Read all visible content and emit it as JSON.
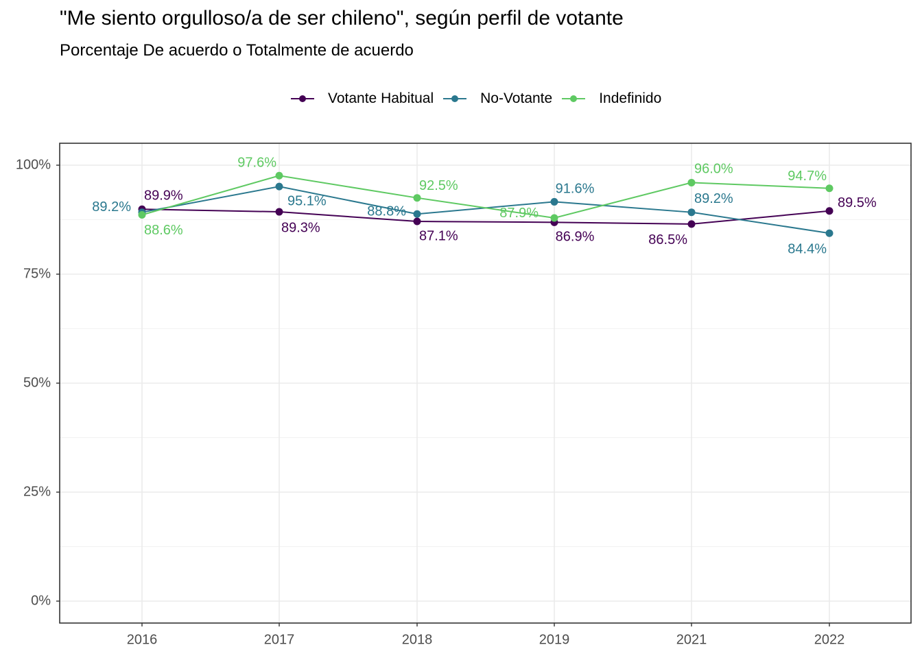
{
  "chart_data": {
    "type": "line",
    "title": "\"Me siento orgulloso/a de ser chileno\", según perfil de votante",
    "subtitle": "Porcentaje De acuerdo o Totalmente de acuerdo",
    "categories": [
      "2016",
      "2017",
      "2018",
      "2019",
      "2021",
      "2022"
    ],
    "ylim": [
      0,
      100
    ],
    "yticks": [
      0,
      25,
      50,
      75,
      100
    ],
    "ytick_labels": [
      "0%",
      "25%",
      "50%",
      "75%",
      "100%"
    ],
    "grid": true,
    "legend_position": "top",
    "series": [
      {
        "name": "Votante Habitual",
        "color": "#440154",
        "values": [
          89.9,
          89.3,
          87.1,
          86.9,
          86.5,
          89.5
        ],
        "labels": [
          "89.9%",
          "89.3%",
          "87.1%",
          "86.9%",
          "86.5%",
          "89.5%"
        ]
      },
      {
        "name": "No-Votante",
        "color": "#2A788E",
        "values": [
          89.2,
          95.1,
          88.8,
          91.6,
          89.2,
          84.4
        ],
        "labels": [
          "89.2%",
          "95.1%",
          "88.8%",
          "91.6%",
          "89.2%",
          "84.4%"
        ]
      },
      {
        "name": "Indefinido",
        "color": "#5EC962",
        "values": [
          88.6,
          97.6,
          92.5,
          87.9,
          96.0,
          94.7
        ],
        "labels": [
          "88.6%",
          "97.6%",
          "92.5%",
          "87.9%",
          "96.0%",
          "94.7%"
        ]
      }
    ]
  }
}
